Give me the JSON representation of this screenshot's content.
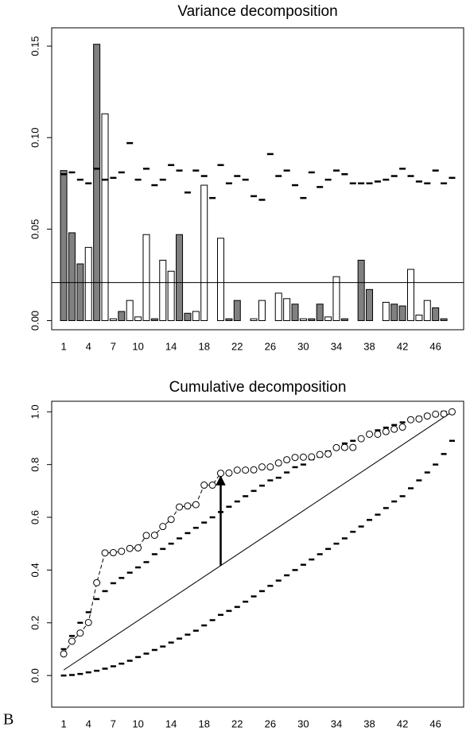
{
  "chart_data": [
    {
      "type": "bar",
      "title": "Variance decomposition",
      "categories": [
        "1",
        null,
        null,
        "4",
        null,
        null,
        "7",
        null,
        null,
        "10",
        null,
        null,
        null,
        "14",
        null,
        null,
        null,
        "18",
        null,
        null,
        null,
        "22",
        null,
        null,
        null,
        "26",
        null,
        null,
        null,
        "30",
        null,
        null,
        null,
        "34",
        null,
        null,
        null,
        "38",
        null,
        null,
        null,
        "42",
        null,
        null,
        null,
        "46",
        null,
        null
      ],
      "values": [
        0.082,
        0.048,
        0.031,
        0.04,
        0.151,
        0.113,
        0.001,
        0.005,
        0.011,
        0.002,
        0.047,
        0.001,
        0.033,
        0.027,
        0.047,
        0.004,
        0.005,
        0.074,
        0.0,
        0.045,
        0.001,
        0.011,
        0.0,
        0.001,
        0.011,
        0.0,
        0.015,
        0.012,
        0.009,
        0.001,
        0.001,
        0.009,
        0.002,
        0.024,
        0.001,
        0.0,
        0.033,
        0.017,
        0.0,
        0.01,
        0.009,
        0.008,
        0.028,
        0.003,
        0.011,
        0.007,
        0.001,
        0.0
      ],
      "colors": [
        "#808080",
        "#808080",
        "#808080",
        "#ffffff",
        "#808080",
        "#ffffff",
        "#ffffff",
        "#808080",
        "#ffffff",
        "#ffffff",
        "#ffffff",
        "#808080",
        "#ffffff",
        "#ffffff",
        "#808080",
        "#808080",
        "#ffffff",
        "#ffffff",
        "#ffffff",
        "#ffffff",
        "#808080",
        "#808080",
        "#ffffff",
        "#ffffff",
        "#ffffff",
        "#ffffff",
        "#ffffff",
        "#ffffff",
        "#808080",
        "#ffffff",
        "#808080",
        "#808080",
        "#ffffff",
        "#ffffff",
        "#808080",
        "#ffffff",
        "#808080",
        "#808080",
        "#ffffff",
        "#ffffff",
        "#808080",
        "#808080",
        "#ffffff",
        "#ffffff",
        "#ffffff",
        "#808080",
        "#808080",
        "#ffffff"
      ],
      "markers": [
        0.08,
        0.081,
        0.077,
        0.075,
        0.083,
        0.077,
        0.078,
        0.081,
        0.097,
        0.077,
        0.083,
        0.074,
        0.077,
        0.085,
        0.082,
        0.07,
        0.082,
        0.079,
        0.067,
        0.085,
        0.075,
        0.079,
        0.077,
        0.068,
        0.066,
        0.091,
        0.079,
        0.082,
        0.074,
        0.067,
        0.081,
        0.073,
        0.077,
        0.082,
        0.08,
        0.075,
        0.075,
        0.075,
        0.076,
        0.077,
        0.079,
        0.083,
        0.079,
        0.076,
        0.075,
        0.082,
        0.075,
        0.078
      ],
      "hline": 0.0208,
      "xlim": [
        -0.45,
        49.4
      ],
      "ylim": [
        -0.005,
        0.16
      ],
      "yticks": [
        {
          "value": 0,
          "label": "0.00"
        },
        {
          "value": 0.05,
          "label": "0.05"
        },
        {
          "value": 0.1,
          "label": "0.10"
        },
        {
          "value": 0.15,
          "label": "0.15"
        }
      ]
    },
    {
      "type": "line",
      "title": "Cumulative decomposition",
      "panel_label": "B",
      "categories": [
        "1",
        null,
        null,
        "4",
        null,
        null,
        "7",
        null,
        null,
        "10",
        null,
        null,
        null,
        "14",
        null,
        null,
        null,
        "18",
        null,
        null,
        null,
        "22",
        null,
        null,
        null,
        "26",
        null,
        null,
        null,
        "30",
        null,
        null,
        null,
        "34",
        null,
        null,
        null,
        "38",
        null,
        null,
        null,
        "42",
        null,
        null,
        null,
        "46",
        null,
        null
      ],
      "values": [
        0.082,
        0.13,
        0.161,
        0.201,
        0.352,
        0.465,
        0.466,
        0.471,
        0.482,
        0.484,
        0.531,
        0.532,
        0.565,
        0.592,
        0.639,
        0.643,
        0.648,
        0.722,
        0.722,
        0.767,
        0.768,
        0.779,
        0.779,
        0.78,
        0.791,
        0.791,
        0.806,
        0.818,
        0.827,
        0.828,
        0.829,
        0.838,
        0.84,
        0.864,
        0.865,
        0.865,
        0.898,
        0.915,
        0.915,
        0.925,
        0.934,
        0.942,
        0.97,
        0.973,
        0.984,
        0.991,
        0.992,
        1.0
      ],
      "line_points": 20,
      "upper": [
        0.1,
        0.15,
        0.2,
        0.24,
        0.29,
        0.32,
        0.35,
        0.37,
        0.39,
        0.41,
        0.43,
        0.46,
        0.48,
        0.5,
        0.52,
        0.54,
        0.56,
        0.58,
        0.6,
        0.62,
        0.64,
        0.66,
        0.68,
        0.7,
        0.72,
        0.74,
        0.75,
        0.77,
        0.79,
        0.8,
        0.82,
        0.83,
        0.85,
        0.86,
        0.88,
        0.89,
        0.9,
        0.92,
        0.93,
        0.94,
        0.95,
        0.96,
        0.97,
        0.98,
        0.99,
        0.995,
        1.0,
        1.0
      ],
      "lower": [
        0.0,
        0.002,
        0.006,
        0.012,
        0.018,
        0.026,
        0.035,
        0.045,
        0.056,
        0.07,
        0.083,
        0.097,
        0.11,
        0.125,
        0.14,
        0.155,
        0.17,
        0.19,
        0.21,
        0.23,
        0.245,
        0.26,
        0.28,
        0.3,
        0.32,
        0.34,
        0.36,
        0.38,
        0.4,
        0.42,
        0.44,
        0.46,
        0.48,
        0.5,
        0.52,
        0.545,
        0.565,
        0.59,
        0.61,
        0.635,
        0.66,
        0.68,
        0.71,
        0.74,
        0.77,
        0.8,
        0.84,
        0.89
      ],
      "diagonal": {
        "x": [
          1,
          48
        ],
        "y": [
          0.0208,
          1.0
        ]
      },
      "arrow": {
        "x": 20,
        "from": 0.417,
        "to": 0.767
      },
      "xlim": [
        -0.45,
        49.4
      ],
      "ylim": [
        -0.12,
        1.04
      ],
      "yticks": [
        {
          "value": 0,
          "label": "0.0"
        },
        {
          "value": 0.2,
          "label": "0.2"
        },
        {
          "value": 0.4,
          "label": "0.4"
        },
        {
          "value": 0.6,
          "label": "0.6"
        },
        {
          "value": 0.8,
          "label": "0.8"
        },
        {
          "value": 1.0,
          "label": "1.0"
        }
      ]
    }
  ]
}
